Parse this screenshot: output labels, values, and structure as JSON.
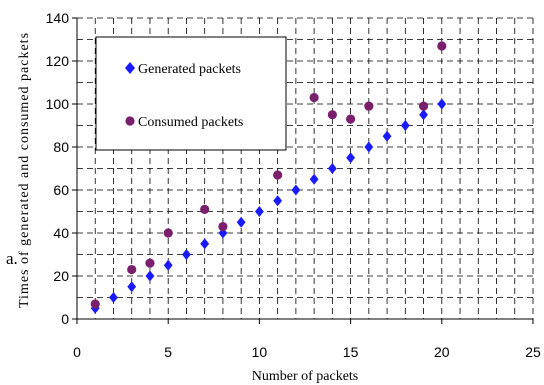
{
  "chart_data": {
    "type": "scatter",
    "xlabel": "Number of packets",
    "ylabel": "Times of generated and consumed packets",
    "xlim": [
      0,
      25
    ],
    "ylim": [
      0,
      140
    ],
    "xticks": [
      0,
      5,
      10,
      15,
      20,
      25
    ],
    "yticks": [
      0,
      20,
      40,
      60,
      80,
      100,
      120,
      140
    ],
    "grid": true,
    "legend_position": "top-left",
    "series": [
      {
        "name": "Generated packets",
        "marker": "diamond",
        "color": "#1a1aff",
        "x": [
          1,
          2,
          3,
          4,
          5,
          6,
          7,
          8,
          9,
          10,
          11,
          12,
          13,
          14,
          15,
          16,
          17,
          18,
          19,
          20
        ],
        "y": [
          5,
          10,
          15,
          20,
          25,
          30,
          35,
          40,
          45,
          50,
          55,
          60,
          65,
          70,
          75,
          80,
          85,
          90,
          95,
          100
        ]
      },
      {
        "name": "Consumed packets",
        "marker": "circle",
        "color": "#7a1f6e",
        "x": [
          1,
          3,
          4,
          5,
          7,
          8,
          11,
          13,
          14,
          15,
          16,
          19,
          20
        ],
        "y": [
          7,
          23,
          26,
          40,
          51,
          43,
          67,
          103,
          95,
          93,
          99,
          99,
          127
        ]
      }
    ]
  },
  "annotation": {
    "corner_label": "a."
  }
}
